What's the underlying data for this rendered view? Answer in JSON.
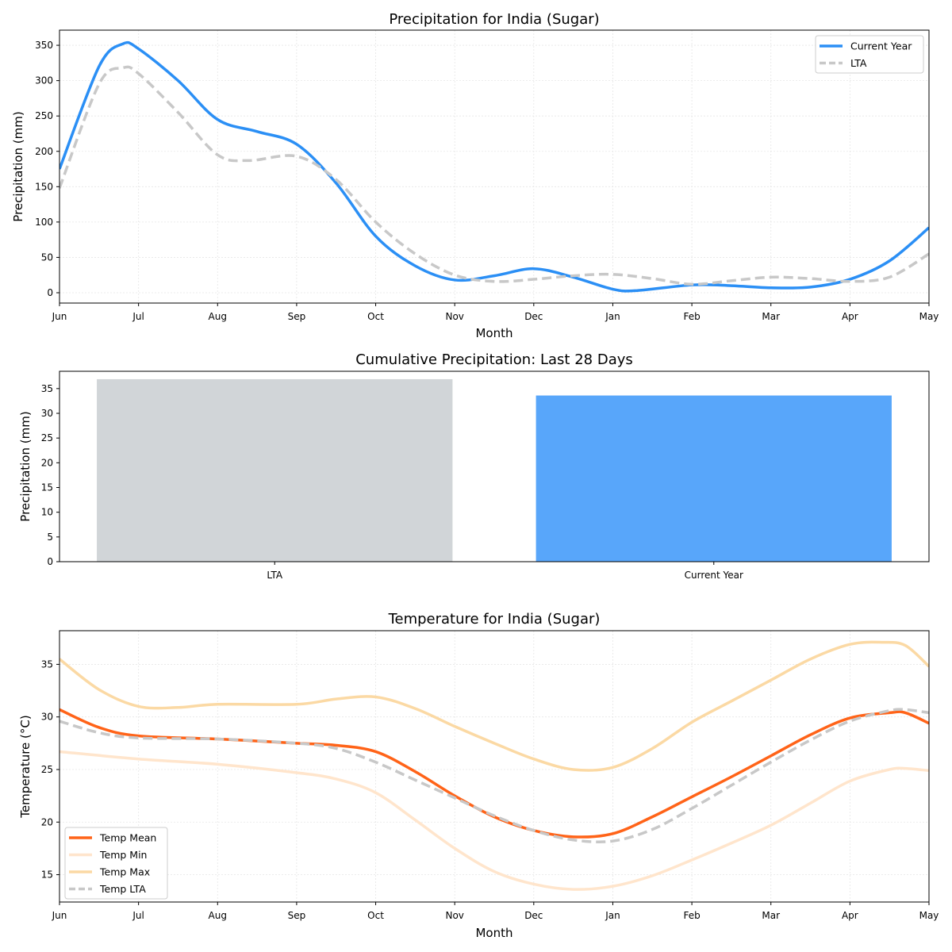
{
  "colors": {
    "current": "#2b8ff5",
    "lta_line": "#c8c8c8",
    "bar_lta": "#d1d5d8",
    "bar_current": "#58a6fa",
    "mean": "#ff6318",
    "min": "#ffe5cc",
    "max": "#fbd9a4",
    "grid": "#e6e6e6"
  },
  "chart_data": [
    {
      "type": "line",
      "title": "Precipitation for India (Sugar)",
      "xlabel": "Month",
      "ylabel": "Precipitation (mm)",
      "xticks": [
        "Jun",
        "Jul",
        "Aug",
        "Sep",
        "Oct",
        "Nov",
        "Dec",
        "Jan",
        "Feb",
        "Mar",
        "Apr",
        "May"
      ],
      "xlim": [
        0,
        11
      ],
      "ylim": [
        -14.6,
        371.4
      ],
      "yticks": [
        0,
        50,
        100,
        150,
        200,
        250,
        300,
        350
      ],
      "grid": true,
      "legend_position": "top-right",
      "series": [
        {
          "name": "Current Year",
          "style": "solid",
          "color_key": "current",
          "x": [
            0,
            0.5,
            0.8,
            1,
            1.5,
            2,
            2.5,
            3,
            3.5,
            4,
            4.5,
            5,
            5.5,
            6,
            6.5,
            7,
            7.3,
            8,
            8.5,
            9,
            9.5,
            10,
            10.5,
            11
          ],
          "y": [
            175,
            320,
            352,
            345,
            300,
            245,
            228,
            210,
            155,
            80,
            38,
            18,
            24,
            34,
            22,
            5,
            3,
            11,
            10,
            7,
            8,
            19,
            45,
            92
          ]
        },
        {
          "name": "LTA",
          "style": "dashed",
          "color_key": "lta_line",
          "x": [
            0,
            0.5,
            0.8,
            1,
            1.5,
            2,
            2.4,
            3,
            3.5,
            4,
            4.5,
            5,
            5.5,
            6,
            6.5,
            7,
            7.5,
            8,
            8.5,
            9,
            9.5,
            10,
            10.5,
            11
          ],
          "y": [
            148,
            295,
            318,
            310,
            255,
            195,
            187,
            193,
            160,
            100,
            55,
            25,
            16,
            19,
            24,
            26,
            20,
            12,
            17,
            22,
            20,
            16,
            22,
            55
          ]
        }
      ]
    },
    {
      "type": "bar",
      "title": "Cumulative Precipitation: Last 28 Days",
      "xlabel": "",
      "ylabel": "Precipitation (mm)",
      "categories": [
        "LTA",
        "Current Year"
      ],
      "values": [
        36.9,
        33.6
      ],
      "color_keys": [
        "bar_lta",
        "bar_current"
      ],
      "ylim": [
        0,
        38.5
      ],
      "yticks": [
        0,
        5,
        10,
        15,
        20,
        25,
        30,
        35
      ],
      "xlim": [
        -0.49,
        1.49
      ]
    },
    {
      "type": "line",
      "title": "Temperature for India (Sugar)",
      "xlabel": "Month",
      "ylabel": "Temperature (°C)",
      "xticks": [
        "Jun",
        "Jul",
        "Aug",
        "Sep",
        "Oct",
        "Nov",
        "Dec",
        "Jan",
        "Feb",
        "Mar",
        "Apr",
        "May"
      ],
      "xlim": [
        0,
        11
      ],
      "ylim": [
        12.4,
        38.2
      ],
      "yticks": [
        15,
        20,
        25,
        30,
        35
      ],
      "grid": true,
      "legend_position": "bottom-left",
      "series": [
        {
          "name": "Temp Mean",
          "style": "solid",
          "color_key": "mean",
          "x": [
            0,
            0.5,
            1,
            2,
            3,
            3.5,
            4,
            4.5,
            5,
            5.5,
            6,
            6.5,
            7,
            7.5,
            8,
            8.5,
            9,
            9.5,
            10,
            10.5,
            10.7,
            11
          ],
          "y": [
            30.7,
            29,
            28.2,
            27.9,
            27.5,
            27.3,
            26.7,
            24.8,
            22.5,
            20.5,
            19.2,
            18.6,
            18.9,
            20.5,
            22.4,
            24.3,
            26.3,
            28.3,
            29.9,
            30.4,
            30.4,
            29.4
          ]
        },
        {
          "name": "Temp Min",
          "style": "solid",
          "color_key": "min",
          "x": [
            0,
            1,
            2,
            3,
            3.5,
            4,
            4.5,
            5,
            5.5,
            6,
            6.5,
            7,
            7.5,
            8,
            8.5,
            9,
            9.5,
            10,
            10.5,
            10.7,
            11
          ],
          "y": [
            26.7,
            26,
            25.5,
            24.7,
            24.1,
            22.8,
            20.2,
            17.5,
            15.3,
            14.1,
            13.6,
            13.9,
            14.9,
            16.4,
            18,
            19.7,
            21.8,
            23.9,
            25,
            25.1,
            24.9
          ]
        },
        {
          "name": "Temp Max",
          "style": "solid",
          "color_key": "max",
          "x": [
            0,
            0.5,
            1,
            1.5,
            2,
            3,
            3.5,
            4,
            4.5,
            5,
            5.5,
            6,
            6.5,
            7,
            7.5,
            8,
            8.5,
            9,
            9.5,
            10,
            10.4,
            10.7,
            11
          ],
          "y": [
            35.5,
            32.6,
            31,
            30.9,
            31.2,
            31.2,
            31.7,
            31.9,
            30.8,
            29.1,
            27.5,
            26,
            25,
            25.2,
            27,
            29.5,
            31.5,
            33.5,
            35.5,
            36.9,
            37.1,
            36.8,
            34.8
          ]
        },
        {
          "name": "Temp LTA",
          "style": "dashed",
          "color_key": "lta_line",
          "x": [
            0,
            0.5,
            1,
            2,
            3,
            3.5,
            4,
            4.5,
            5,
            5.5,
            6,
            6.5,
            7,
            7.5,
            8,
            8.5,
            9,
            9.5,
            10,
            10.5,
            10.7,
            11
          ],
          "y": [
            29.6,
            28.5,
            28,
            27.9,
            27.5,
            27,
            25.7,
            24,
            22.3,
            20.6,
            19.2,
            18.3,
            18.2,
            19.3,
            21.3,
            23.5,
            25.7,
            27.8,
            29.6,
            30.6,
            30.7,
            30.4
          ]
        }
      ]
    }
  ]
}
